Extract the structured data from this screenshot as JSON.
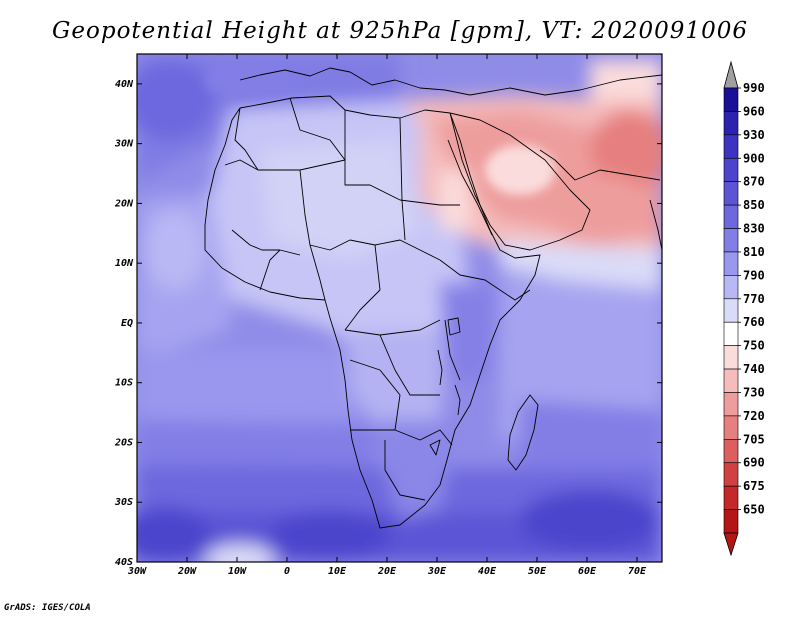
{
  "title": "Geopotential Height at 925hPa [gpm], VT: 2020091006",
  "credit": "GrADS: IGES/COLA",
  "map": {
    "lat_ticks": [
      "40N",
      "30N",
      "20N",
      "10N",
      "EQ",
      "10S",
      "20S",
      "30S",
      "40S"
    ],
    "lon_ticks": [
      "30W",
      "20W",
      "10W",
      "0",
      "10E",
      "20E",
      "30E",
      "40E",
      "50E",
      "60E",
      "70E"
    ],
    "lat_range": [
      -40,
      45
    ],
    "lon_range": [
      -30,
      75
    ]
  },
  "colorbar": {
    "levels": [
      "990",
      "960",
      "930",
      "900",
      "870",
      "850",
      "830",
      "810",
      "790",
      "770",
      "760",
      "750",
      "740",
      "730",
      "720",
      "705",
      "690",
      "675",
      "650"
    ],
    "colors": [
      "#1a0f96",
      "#2d22b0",
      "#3d33c0",
      "#4c44cc",
      "#5b55d6",
      "#6d68de",
      "#827ee6",
      "#9a97ee",
      "#b9b8f4",
      "#dadbf8",
      "#ffffff",
      "#fbdcdc",
      "#f5bcbc",
      "#ee9d9d",
      "#e67f7f",
      "#dc5f5f",
      "#d04141",
      "#c42828",
      "#b51515"
    ],
    "top_arrow_color": "#a0a0a0",
    "bottom_arrow_color": "#b51515"
  }
}
